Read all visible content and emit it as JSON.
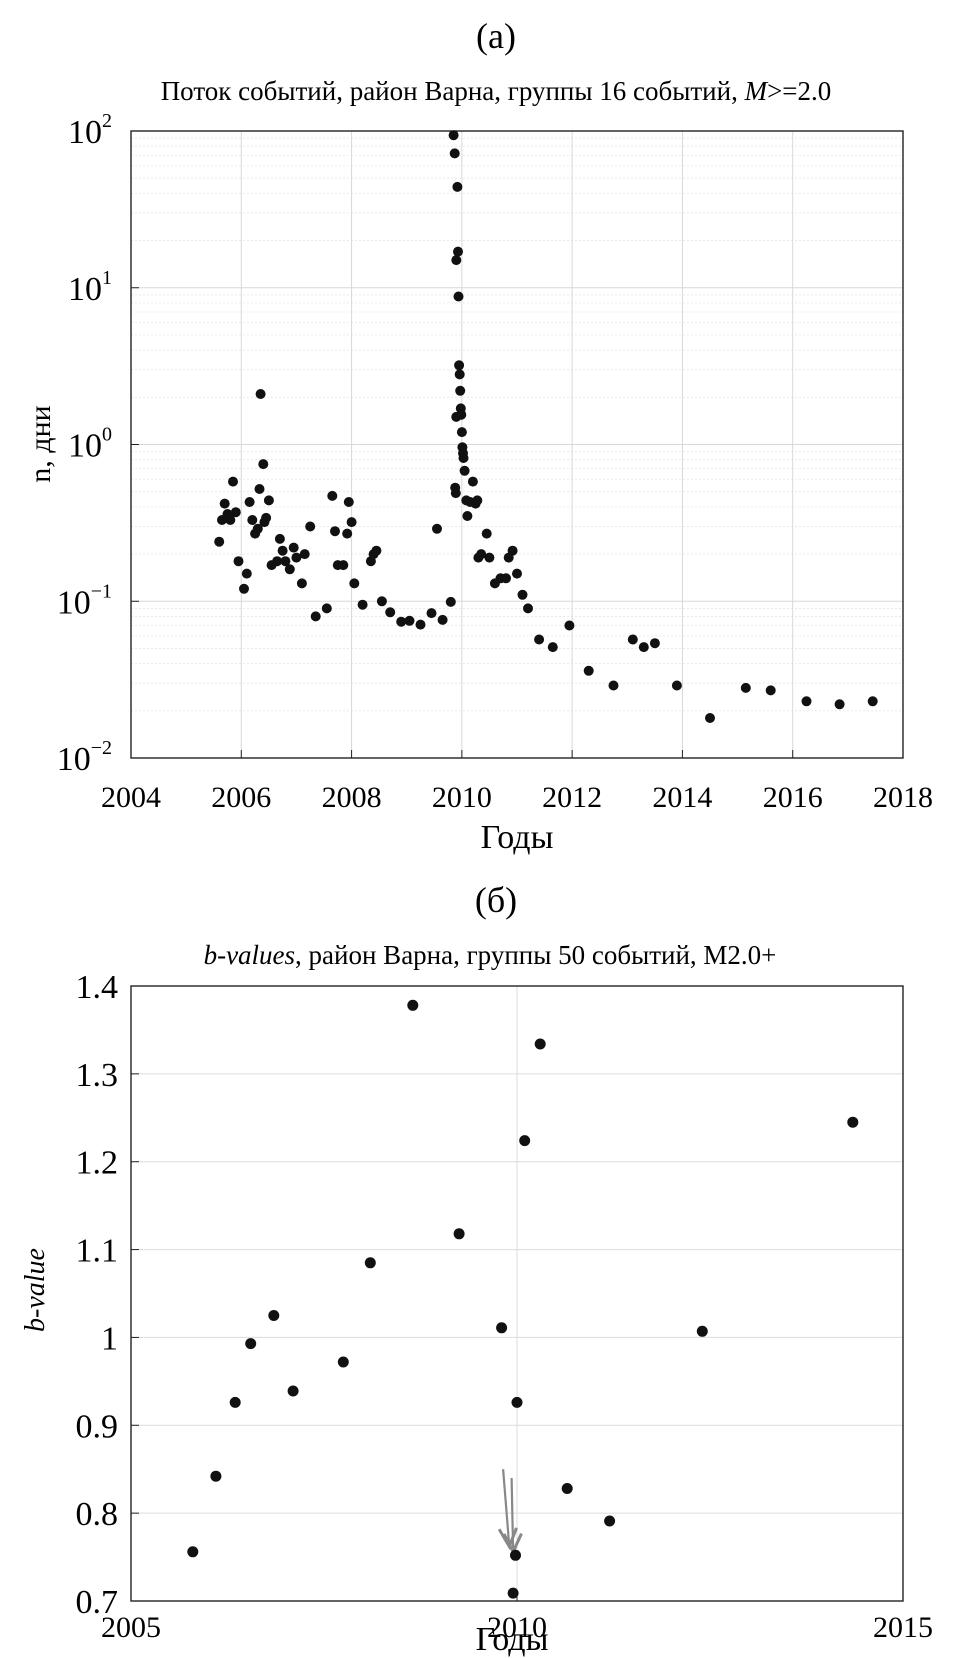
{
  "chart_data": [
    {
      "type": "scatter",
      "panel_label": "(a)",
      "title": "Поток событий, район Варна, группы 16 событий, ",
      "title_italic": "M",
      "title_tail": ">=2.0",
      "xlabel": "Годы",
      "ylabel": "n, дни",
      "xlim": [
        2004,
        2018
      ],
      "ylim": [
        0.01,
        100
      ],
      "yscale": "log",
      "grid": true,
      "xticks": [
        2004,
        2006,
        2008,
        2010,
        2012,
        2014,
        2016,
        2018
      ],
      "yticks": [
        {
          "base": "10",
          "exp": "−2",
          "value": 0.01
        },
        {
          "base": "10",
          "exp": "−1",
          "value": 0.1
        },
        {
          "base": "10",
          "exp": "0",
          "value": 1
        },
        {
          "base": "10",
          "exp": "1",
          "value": 10
        },
        {
          "base": "10",
          "exp": "2",
          "value": 100
        }
      ],
      "points": [
        [
          2005.6,
          0.24
        ],
        [
          2005.65,
          0.33
        ],
        [
          2005.7,
          0.42
        ],
        [
          2005.75,
          0.36
        ],
        [
          2005.8,
          0.33
        ],
        [
          2005.85,
          0.58
        ],
        [
          2005.9,
          0.37
        ],
        [
          2005.95,
          0.18
        ],
        [
          2006.05,
          0.12
        ],
        [
          2006.1,
          0.15
        ],
        [
          2006.15,
          0.43
        ],
        [
          2006.2,
          0.33
        ],
        [
          2006.25,
          0.27
        ],
        [
          2006.3,
          0.29
        ],
        [
          2006.33,
          0.52
        ],
        [
          2006.35,
          2.1
        ],
        [
          2006.4,
          0.75
        ],
        [
          2006.42,
          0.32
        ],
        [
          2006.45,
          0.34
        ],
        [
          2006.5,
          0.44
        ],
        [
          2006.55,
          0.17
        ],
        [
          2006.65,
          0.18
        ],
        [
          2006.7,
          0.25
        ],
        [
          2006.75,
          0.21
        ],
        [
          2006.8,
          0.18
        ],
        [
          2006.88,
          0.16
        ],
        [
          2006.95,
          0.22
        ],
        [
          2007.0,
          0.19
        ],
        [
          2007.1,
          0.13
        ],
        [
          2007.15,
          0.2
        ],
        [
          2007.25,
          0.3
        ],
        [
          2007.35,
          0.08
        ],
        [
          2007.55,
          0.09
        ],
        [
          2007.65,
          0.47
        ],
        [
          2007.7,
          0.28
        ],
        [
          2007.75,
          0.17
        ],
        [
          2007.85,
          0.17
        ],
        [
          2007.92,
          0.27
        ],
        [
          2007.95,
          0.43
        ],
        [
          2008.0,
          0.32
        ],
        [
          2008.05,
          0.13
        ],
        [
          2008.2,
          0.095
        ],
        [
          2008.35,
          0.18
        ],
        [
          2008.4,
          0.2
        ],
        [
          2008.45,
          0.21
        ],
        [
          2008.55,
          0.1
        ],
        [
          2008.7,
          0.085
        ],
        [
          2008.9,
          0.074
        ],
        [
          2009.05,
          0.075
        ],
        [
          2009.25,
          0.071
        ],
        [
          2009.45,
          0.084
        ],
        [
          2009.55,
          0.29
        ],
        [
          2009.65,
          0.076
        ],
        [
          2009.8,
          0.099
        ],
        [
          2009.85,
          94
        ],
        [
          2009.87,
          72
        ],
        [
          2009.9,
          15
        ],
        [
          2009.92,
          44
        ],
        [
          2009.93,
          17
        ],
        [
          2009.94,
          8.8
        ],
        [
          2009.95,
          3.2
        ],
        [
          2009.96,
          2.8
        ],
        [
          2009.97,
          2.2
        ],
        [
          2009.98,
          1.7
        ],
        [
          2009.99,
          1.55
        ],
        [
          2010.0,
          1.2
        ],
        [
          2010.01,
          0.96
        ],
        [
          2010.02,
          0.88
        ],
        [
          2010.03,
          0.82
        ],
        [
          2010.05,
          0.68
        ],
        [
          2009.88,
          0.53
        ],
        [
          2009.89,
          0.49
        ],
        [
          2009.9,
          1.5
        ],
        [
          2010.08,
          0.44
        ],
        [
          2010.1,
          0.35
        ],
        [
          2010.15,
          0.43
        ],
        [
          2010.2,
          0.58
        ],
        [
          2010.25,
          0.42
        ],
        [
          2010.28,
          0.44
        ],
        [
          2010.3,
          0.19
        ],
        [
          2010.35,
          0.2
        ],
        [
          2010.45,
          0.27
        ],
        [
          2010.5,
          0.19
        ],
        [
          2010.6,
          0.13
        ],
        [
          2010.7,
          0.14
        ],
        [
          2010.8,
          0.14
        ],
        [
          2010.85,
          0.19
        ],
        [
          2010.92,
          0.21
        ],
        [
          2011.0,
          0.15
        ],
        [
          2011.1,
          0.11
        ],
        [
          2011.2,
          0.09
        ],
        [
          2011.4,
          0.057
        ],
        [
          2011.65,
          0.051
        ],
        [
          2011.95,
          0.07
        ],
        [
          2012.3,
          0.036
        ],
        [
          2012.75,
          0.029
        ],
        [
          2013.1,
          0.057
        ],
        [
          2013.3,
          0.051
        ],
        [
          2013.5,
          0.054
        ],
        [
          2013.9,
          0.029
        ],
        [
          2014.5,
          0.018
        ],
        [
          2015.15,
          0.028
        ],
        [
          2015.6,
          0.027
        ],
        [
          2016.25,
          0.023
        ],
        [
          2016.85,
          0.022
        ],
        [
          2017.45,
          0.023
        ]
      ]
    },
    {
      "type": "scatter",
      "panel_label": "(б)",
      "title_italic": "b-values",
      "title_tail": ", район Варна, группы 50 событий, M2.0+",
      "xlabel": "Годы",
      "ylabel": "b-value",
      "xlim": [
        2005,
        2015
      ],
      "ylim": [
        0.7,
        1.4
      ],
      "grid": true,
      "xticks": [
        2005,
        2010,
        2015
      ],
      "yticks": [
        0.7,
        0.8,
        0.9,
        1,
        1.1,
        1.2,
        1.3,
        1.4
      ],
      "ytick_labels": [
        "0.7",
        "0.8",
        "0.9",
        "1",
        "1.1",
        "1.2",
        "1.3",
        "1.4"
      ],
      "points": [
        [
          2005.8,
          0.756
        ],
        [
          2006.1,
          0.842
        ],
        [
          2006.35,
          0.926
        ],
        [
          2006.55,
          0.993
        ],
        [
          2006.85,
          1.025
        ],
        [
          2007.1,
          0.939
        ],
        [
          2007.75,
          0.972
        ],
        [
          2008.1,
          1.085
        ],
        [
          2008.65,
          1.378
        ],
        [
          2009.25,
          1.118
        ],
        [
          2009.8,
          1.011
        ],
        [
          2009.95,
          0.709
        ],
        [
          2009.98,
          0.752
        ],
        [
          2010.0,
          0.926
        ],
        [
          2010.1,
          1.224
        ],
        [
          2010.3,
          1.334
        ],
        [
          2010.65,
          0.828
        ],
        [
          2011.2,
          0.791
        ],
        [
          2012.4,
          1.007
        ],
        [
          2014.35,
          1.245
        ]
      ],
      "annotations": [
        {
          "type": "arrow",
          "color": "#888888",
          "from": [
            2009.82,
            0.85
          ],
          "to": [
            2009.9,
            0.762
          ]
        },
        {
          "type": "arrow",
          "color": "#888888",
          "from": [
            2009.93,
            0.84
          ],
          "to": [
            2009.95,
            0.756
          ]
        }
      ]
    }
  ]
}
